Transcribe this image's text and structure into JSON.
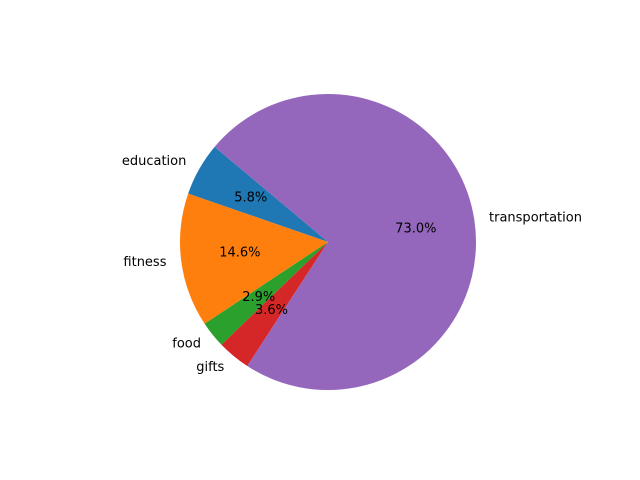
{
  "chart_data": {
    "type": "pie",
    "start_angle_deg": 140,
    "direction": "counterclockwise",
    "slices": [
      {
        "label": "education",
        "value": 5.8,
        "pct_label": "5.8%",
        "color": "#1f77b4"
      },
      {
        "label": "fitness",
        "value": 14.6,
        "pct_label": "14.6%",
        "color": "#ff7f0e"
      },
      {
        "label": "food",
        "value": 2.9,
        "pct_label": "2.9%",
        "color": "#2ca02c"
      },
      {
        "label": "gifts",
        "value": 3.6,
        "pct_label": "3.6%",
        "color": "#d62728"
      },
      {
        "label": "transportation",
        "value": 73.0,
        "pct_label": "73.0%",
        "color": "#9467bd"
      }
    ]
  }
}
